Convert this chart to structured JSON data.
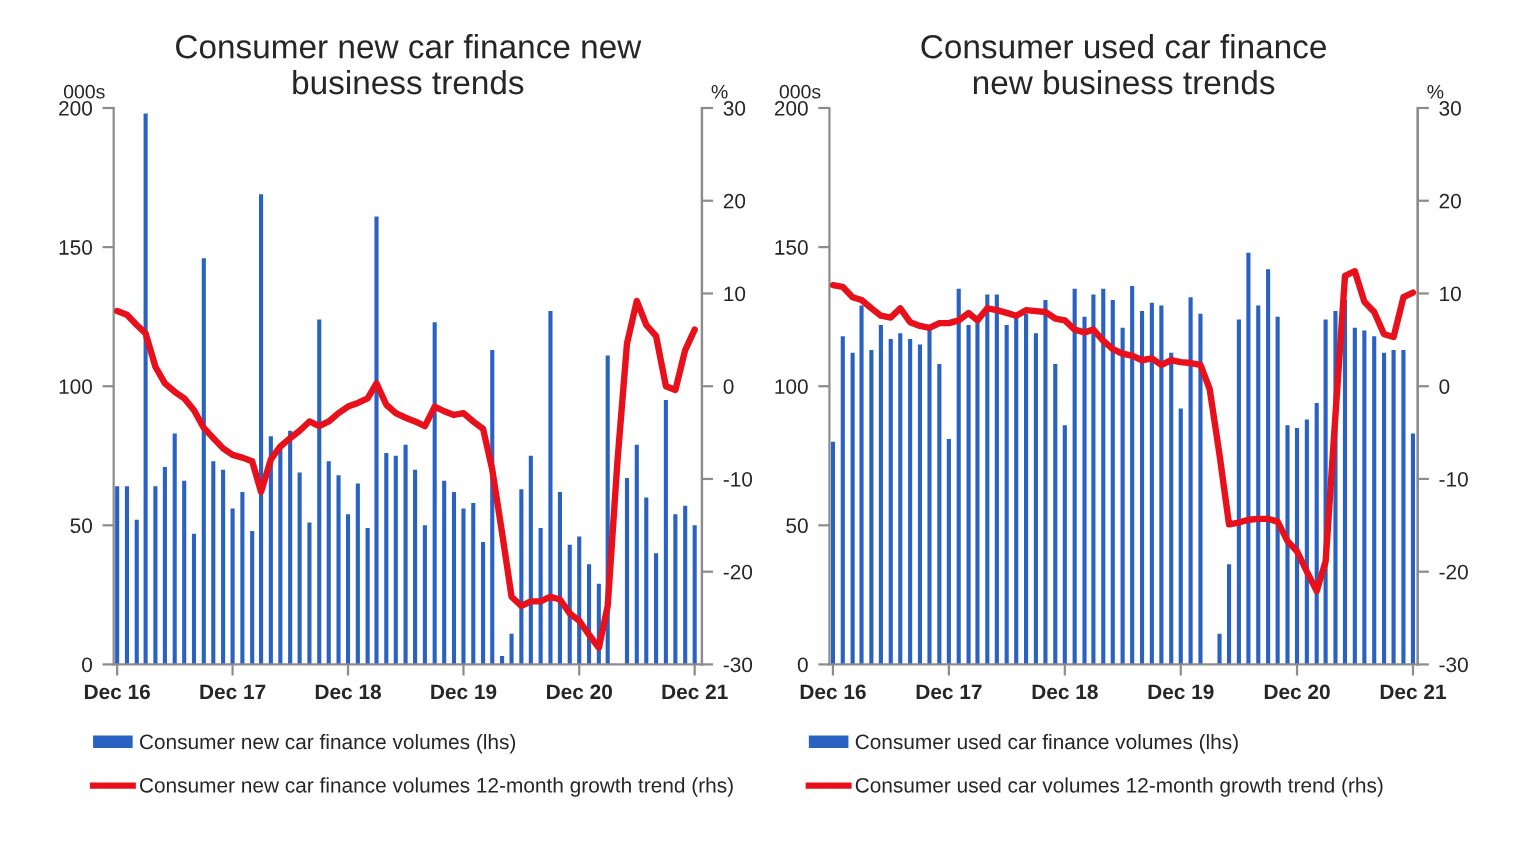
{
  "chart_data": [
    {
      "type": "bar",
      "title": "Consumer new car finance new business trends",
      "ylabel": "000s",
      "y2label": "%",
      "x": [
        "2016-12",
        "2017-01",
        "2017-02",
        "2017-03",
        "2017-04",
        "2017-05",
        "2017-06",
        "2017-07",
        "2017-08",
        "2017-09",
        "2017-10",
        "2017-11",
        "2017-12",
        "2018-01",
        "2018-02",
        "2018-03",
        "2018-04",
        "2018-05",
        "2018-06",
        "2018-07",
        "2018-08",
        "2018-09",
        "2018-10",
        "2018-11",
        "2018-12",
        "2019-01",
        "2019-02",
        "2019-03",
        "2019-04",
        "2019-05",
        "2019-06",
        "2019-07",
        "2019-08",
        "2019-09",
        "2019-10",
        "2019-11",
        "2019-12",
        "2020-01",
        "2020-02",
        "2020-03",
        "2020-04",
        "2020-05",
        "2020-06",
        "2020-07",
        "2020-08",
        "2020-09",
        "2020-10",
        "2020-11",
        "2020-12",
        "2021-01",
        "2021-02",
        "2021-03",
        "2021-04",
        "2021-05",
        "2021-06",
        "2021-07",
        "2021-08",
        "2021-09",
        "2021-10",
        "2021-11",
        "2021-12"
      ],
      "series": [
        {
          "name": "Consumer new car finance volumes (lhs)",
          "axis": "y",
          "color": "#2a62c4",
          "values": [
            64,
            64,
            52,
            198,
            64,
            71,
            83,
            66,
            47,
            146,
            73,
            70,
            56,
            62,
            48,
            169,
            82,
            79,
            84,
            69,
            51,
            124,
            73,
            68,
            54,
            65,
            49,
            161,
            76,
            75,
            79,
            70,
            50,
            123,
            66,
            62,
            56,
            58,
            44,
            113,
            3,
            11,
            63,
            75,
            49,
            127,
            62,
            43,
            46,
            36,
            29,
            111,
            null,
            67,
            79,
            60,
            40,
            95,
            54,
            57,
            50
          ]
        },
        {
          "name": "Consumer new car finance volumes 12-month growth trend (rhs)",
          "type": "line",
          "axis": "y2",
          "color": "#e8101a",
          "values": [
            8.1,
            7.7,
            6.6,
            5.7,
            2.1,
            0.3,
            -0.6,
            -1.3,
            -2.6,
            -4.5,
            -5.6,
            -6.7,
            -7.4,
            -7.7,
            -8.1,
            -11.4,
            -7.9,
            -6.5,
            -5.6,
            -4.8,
            -3.8,
            -4.3,
            -3.8,
            -2.9,
            -2.2,
            -1.8,
            -1.3,
            0.3,
            -2.0,
            -2.9,
            -3.4,
            -3.8,
            -4.3,
            -2.2,
            -2.7,
            -3.1,
            -2.9,
            -3.8,
            -4.6,
            -9.0,
            -15.8,
            -22.7,
            -23.7,
            -23.2,
            -23.2,
            -22.7,
            -23.0,
            -24.5,
            -25.3,
            -26.8,
            -28.2,
            -23.7,
            -8.0,
            4.6,
            9.2,
            6.6,
            5.4,
            0.0,
            -0.4,
            3.9,
            6.1
          ]
        }
      ],
      "xlim": [
        "2016-11-20",
        "2021-12-24"
      ],
      "xticks": [
        {
          "value": "2016-12",
          "label": "Dec 16"
        },
        {
          "value": "2017-12",
          "label": "Dec 17"
        },
        {
          "value": "2018-12",
          "label": "Dec 18"
        },
        {
          "value": "2019-12",
          "label": "Dec 19"
        },
        {
          "value": "2020-12",
          "label": "Dec 20"
        },
        {
          "value": "2021-12",
          "label": "Dec 21"
        }
      ],
      "ylim": [
        0,
        200
      ],
      "yticks": [
        0,
        50,
        100,
        150,
        200
      ],
      "y2lim": [
        -30,
        30
      ],
      "y2ticks": [
        -30,
        -20,
        -10,
        0,
        10,
        20,
        30
      ],
      "legend": "bottom",
      "grid": false
    },
    {
      "type": "bar",
      "title": "Consumer used car finance new business trends",
      "ylabel": "000s",
      "y2label": "%",
      "x": [
        "2016-12",
        "2017-01",
        "2017-02",
        "2017-03",
        "2017-04",
        "2017-05",
        "2017-06",
        "2017-07",
        "2017-08",
        "2017-09",
        "2017-10",
        "2017-11",
        "2017-12",
        "2018-01",
        "2018-02",
        "2018-03",
        "2018-04",
        "2018-05",
        "2018-06",
        "2018-07",
        "2018-08",
        "2018-09",
        "2018-10",
        "2018-11",
        "2018-12",
        "2019-01",
        "2019-02",
        "2019-03",
        "2019-04",
        "2019-05",
        "2019-06",
        "2019-07",
        "2019-08",
        "2019-09",
        "2019-10",
        "2019-11",
        "2019-12",
        "2020-01",
        "2020-02",
        "2020-03",
        "2020-04",
        "2020-05",
        "2020-06",
        "2020-07",
        "2020-08",
        "2020-09",
        "2020-10",
        "2020-11",
        "2020-12",
        "2021-01",
        "2021-02",
        "2021-03",
        "2021-04",
        "2021-05",
        "2021-06",
        "2021-07",
        "2021-08",
        "2021-09",
        "2021-10",
        "2021-11",
        "2021-12"
      ],
      "series": [
        {
          "name": "Consumer used car finance volumes (lhs)",
          "axis": "y",
          "color": "#2a62c4",
          "values": [
            80,
            118,
            112,
            129,
            113,
            122,
            117,
            119,
            117,
            115,
            121,
            108,
            81,
            135,
            122,
            123,
            133,
            133,
            122,
            125,
            126,
            119,
            131,
            108,
            86,
            135,
            125,
            133,
            135,
            131,
            121,
            136,
            127,
            130,
            129,
            112,
            92,
            132,
            126,
            null,
            11,
            36,
            124,
            148,
            129,
            142,
            125,
            86,
            85,
            88,
            94,
            124,
            127,
            131,
            121,
            120,
            118,
            112,
            113,
            113,
            83
          ]
        },
        {
          "name": "Consumer used car volumes 12-month growth trend (rhs)",
          "type": "line",
          "axis": "y2",
          "color": "#e8101a",
          "values": [
            10.9,
            10.7,
            9.6,
            9.3,
            8.4,
            7.6,
            7.4,
            8.4,
            6.9,
            6.5,
            6.3,
            6.8,
            6.8,
            7.1,
            7.9,
            7.1,
            8.4,
            8.2,
            7.9,
            7.6,
            8.2,
            8.1,
            8.0,
            7.3,
            7.1,
            6.1,
            5.8,
            6.1,
            4.9,
            4.0,
            3.5,
            3.3,
            2.8,
            3.0,
            2.3,
            2.8,
            2.6,
            2.5,
            2.3,
            -0.3,
            -7.4,
            -14.9,
            -14.7,
            -14.4,
            -14.3,
            -14.3,
            -14.6,
            -16.7,
            -17.8,
            -20.0,
            -22.1,
            -18.9,
            -3.1,
            11.9,
            12.4,
            9.1,
            8.0,
            5.6,
            5.3,
            9.6,
            10.1
          ]
        }
      ],
      "xlim": [
        "2016-11-20",
        "2021-12-16"
      ],
      "xticks": [
        {
          "value": "2016-12",
          "label": "Dec 16"
        },
        {
          "value": "2017-12",
          "label": "Dec 17"
        },
        {
          "value": "2018-12",
          "label": "Dec 18"
        },
        {
          "value": "2019-12",
          "label": "Dec 19"
        },
        {
          "value": "2020-12",
          "label": "Dec 20"
        },
        {
          "value": "2021-12",
          "label": "Dec 21"
        }
      ],
      "ylim": [
        0,
        200
      ],
      "yticks": [
        0,
        50,
        100,
        150,
        200
      ],
      "y2lim": [
        -30,
        30
      ],
      "y2ticks": [
        -30,
        -20,
        -10,
        0,
        10,
        20,
        30
      ],
      "legend": "bottom",
      "grid": false
    }
  ]
}
